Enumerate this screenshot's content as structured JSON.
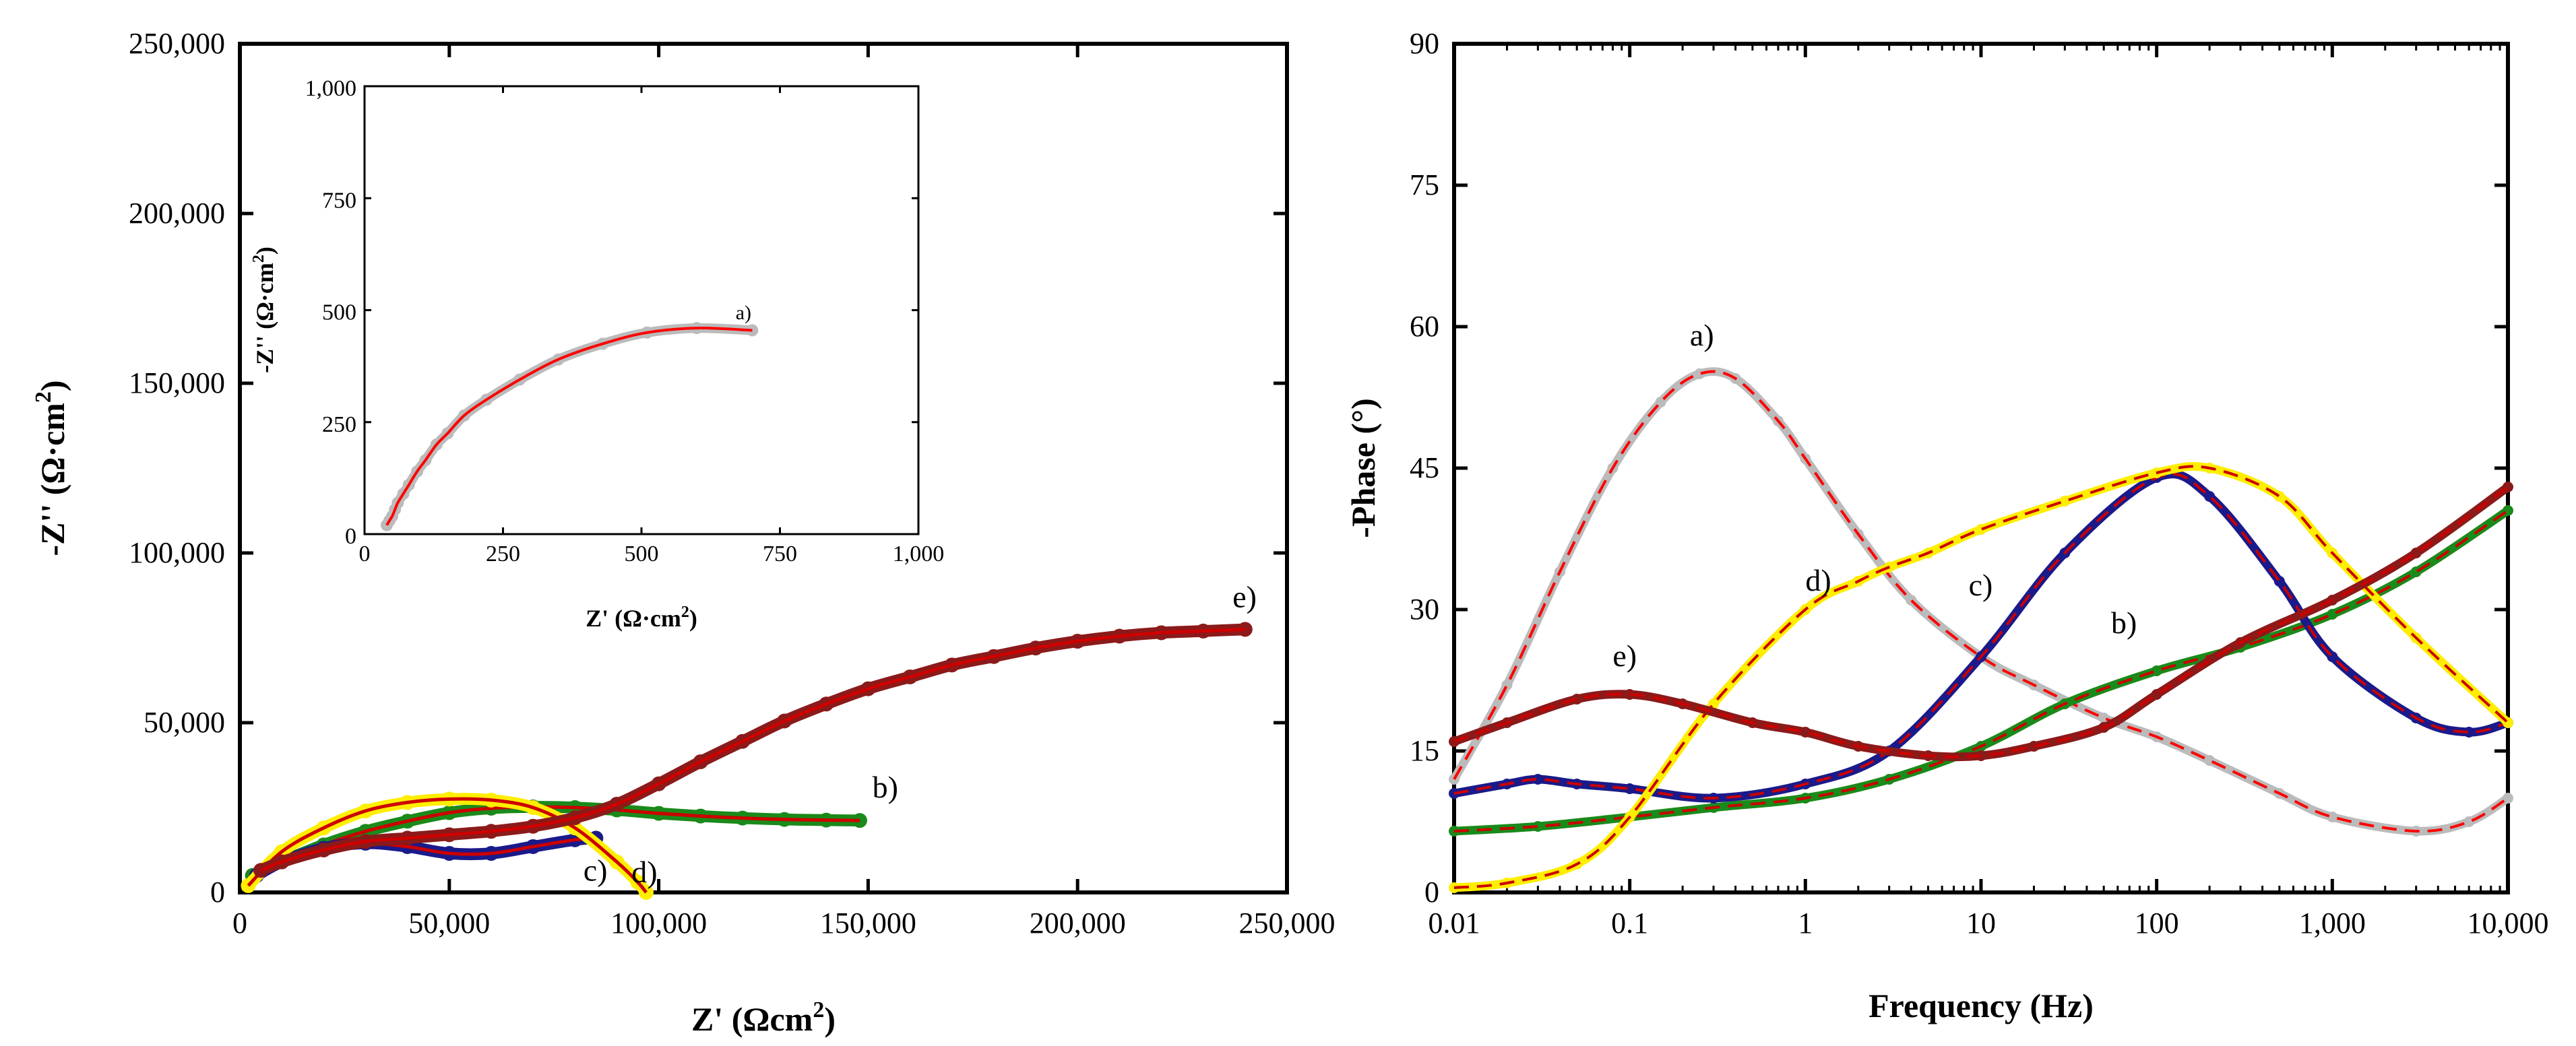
{
  "chart_data": [
    {
      "type": "scatter",
      "id": "nyquist",
      "xlabel": "Z' (Ωcm",
      "xlabel_sup": "2",
      "xlabel_end": ")",
      "ylabel": "-Z'' (Ω·cm",
      "ylabel_sup": "2",
      "ylabel_end": ")",
      "xlim": [
        0,
        250000
      ],
      "ylim": [
        0,
        250000
      ],
      "xticks": [
        "0",
        "50,000",
        "100,000",
        "150,000",
        "200,000",
        "250,000"
      ],
      "yticks": [
        "0",
        "50,000",
        "100,000",
        "150,000",
        "200,000",
        "250,000"
      ],
      "xtick_values": [
        0,
        50000,
        100000,
        150000,
        200000,
        250000
      ],
      "ytick_values": [
        0,
        50000,
        100000,
        150000,
        200000,
        250000
      ],
      "series": [
        {
          "name": "b)",
          "color": "#1a8a1a",
          "fit": "#cc0000",
          "x": [
            3000,
            10000,
            20000,
            30000,
            40000,
            50000,
            60000,
            70000,
            80000,
            90000,
            100000,
            110000,
            120000,
            130000,
            140000,
            148000
          ],
          "y": [
            5000,
            9000,
            14000,
            18000,
            21000,
            23500,
            24800,
            25200,
            25000,
            24300,
            23300,
            22500,
            21900,
            21500,
            21300,
            21200
          ]
        },
        {
          "name": "c)",
          "color": "#1a1a8a",
          "fit": "#cc0000",
          "x": [
            4000,
            10000,
            20000,
            30000,
            40000,
            50000,
            60000,
            70000,
            80000,
            85000
          ],
          "y": [
            5000,
            9000,
            13000,
            14500,
            13500,
            11500,
            11500,
            13500,
            15500,
            16000
          ]
        },
        {
          "name": "d)",
          "color": "#ffee00",
          "fit": "#cc0000",
          "x": [
            2000,
            10000,
            20000,
            30000,
            40000,
            50000,
            60000,
            70000,
            80000,
            90000,
            95000,
            97000
          ],
          "y": [
            2000,
            12000,
            19000,
            24000,
            26500,
            27500,
            27200,
            25000,
            19000,
            9000,
            3000,
            0
          ]
        },
        {
          "name": "e)",
          "color": "#8b1a1a",
          "fit": "#cc0000",
          "x": [
            5000,
            10000,
            20000,
            30000,
            40000,
            50000,
            60000,
            70000,
            80000,
            90000,
            100000,
            110000,
            120000,
            130000,
            140000,
            150000,
            160000,
            170000,
            180000,
            190000,
            200000,
            210000,
            220000,
            230000,
            240000
          ],
          "y": [
            6500,
            9000,
            12500,
            15000,
            16000,
            17000,
            18000,
            19500,
            22000,
            26000,
            32000,
            38500,
            44500,
            50500,
            55500,
            60000,
            63500,
            67000,
            69500,
            72000,
            74000,
            75500,
            76500,
            77000,
            77500
          ]
        }
      ],
      "annotations": [
        "b)",
        "c)",
        "d)",
        "e)"
      ],
      "inset": {
        "type": "scatter",
        "xlabel": "Z' (Ω·cm",
        "xlabel_sup": "2",
        "xlabel_end": ")",
        "ylabel": "-Z'' (Ω·cm",
        "ylabel_sup": "2",
        "ylabel_end": ")",
        "xlim": [
          0,
          1000
        ],
        "ylim": [
          0,
          1000
        ],
        "xticks": [
          "0",
          "250",
          "500",
          "750",
          "1,000"
        ],
        "yticks": [
          "0",
          "250",
          "500",
          "750",
          "1,000"
        ],
        "tick_values": [
          0,
          250,
          500,
          750,
          1000
        ],
        "series": [
          {
            "name": "a)",
            "color": "#bbbbbb",
            "fit": "#ff0000",
            "x": [
              40,
              45,
              50,
              55,
              60,
              70,
              80,
              95,
              110,
              130,
              150,
              180,
              220,
              280,
              350,
              430,
              510,
              600,
              700
            ],
            "y": [
              20,
              30,
              40,
              55,
              70,
              90,
              110,
              140,
              165,
              200,
              225,
              265,
              300,
              345,
              390,
              425,
              450,
              460,
              455
            ]
          }
        ]
      }
    },
    {
      "type": "line",
      "id": "bode-phase",
      "xscale": "log",
      "xlabel": "Frequency (Hz)",
      "ylabel": "-Phase (°)",
      "xlim": [
        0.01,
        10000
      ],
      "ylim": [
        0,
        90
      ],
      "xticks": [
        "0.01",
        "0.1",
        "1",
        "10",
        "100",
        "1,000",
        "10,000"
      ],
      "xtick_values": [
        0.01,
        0.1,
        1,
        10,
        100,
        1000,
        10000
      ],
      "yticks": [
        "0",
        "15",
        "30",
        "45",
        "60",
        "75",
        "90"
      ],
      "ytick_values": [
        0,
        15,
        30,
        45,
        60,
        75,
        90
      ],
      "series": [
        {
          "name": "a)",
          "color": "#bbbbbb",
          "fit": "#ff0000",
          "x": [
            0.01,
            0.02,
            0.04,
            0.08,
            0.15,
            0.25,
            0.4,
            0.7,
            1,
            2,
            4,
            10,
            20,
            50,
            100,
            200,
            500,
            1000,
            3000,
            6000,
            10000
          ],
          "y": [
            12,
            22,
            34,
            45,
            52,
            55,
            54.5,
            50,
            46,
            38,
            31,
            25,
            22,
            18.5,
            16.5,
            14,
            10.5,
            8,
            6.5,
            7.5,
            10
          ]
        },
        {
          "name": "b)",
          "color": "#1a8a1a",
          "fit": "#cc0000",
          "x": [
            0.01,
            0.03,
            0.1,
            0.3,
            1,
            3,
            10,
            30,
            100,
            300,
            1000,
            3000,
            10000
          ],
          "y": [
            6.5,
            7,
            8,
            9,
            10,
            12,
            15.5,
            20,
            23.5,
            26,
            29.5,
            34,
            40.5
          ]
        },
        {
          "name": "c)",
          "color": "#1a1a8a",
          "fit": "#cc0000",
          "x": [
            0.01,
            0.02,
            0.03,
            0.05,
            0.1,
            0.3,
            1,
            3,
            10,
            30,
            100,
            200,
            500,
            1000,
            3000,
            6000,
            10000
          ],
          "y": [
            10.5,
            11.5,
            12,
            11.5,
            11,
            10,
            11.5,
            15,
            25,
            36,
            44,
            42,
            33,
            25,
            18.5,
            17,
            18
          ]
        },
        {
          "name": "d)",
          "color": "#ffee00",
          "fit": "#cc0000",
          "x": [
            0.01,
            0.02,
            0.05,
            0.1,
            0.3,
            1,
            2,
            3,
            5,
            10,
            30,
            100,
            200,
            500,
            1000,
            3000,
            10000
          ],
          "y": [
            0.5,
            1,
            3,
            8,
            20,
            30,
            33,
            34.5,
            36,
            38.5,
            41.5,
            44.5,
            45,
            42,
            36,
            27,
            18
          ]
        },
        {
          "name": "e)",
          "color": "#8b1a1a",
          "fit": "#cc0000",
          "x": [
            0.01,
            0.02,
            0.05,
            0.1,
            0.2,
            0.5,
            1,
            2,
            5,
            10,
            20,
            50,
            100,
            300,
            1000,
            3000,
            10000
          ],
          "y": [
            16,
            18,
            20.5,
            21,
            20,
            18,
            17,
            15.5,
            14.5,
            14.5,
            15.5,
            17.5,
            21,
            26.5,
            31,
            36,
            43
          ]
        }
      ],
      "annotations": [
        "a)",
        "b)",
        "c)",
        "d)",
        "e)"
      ]
    }
  ]
}
